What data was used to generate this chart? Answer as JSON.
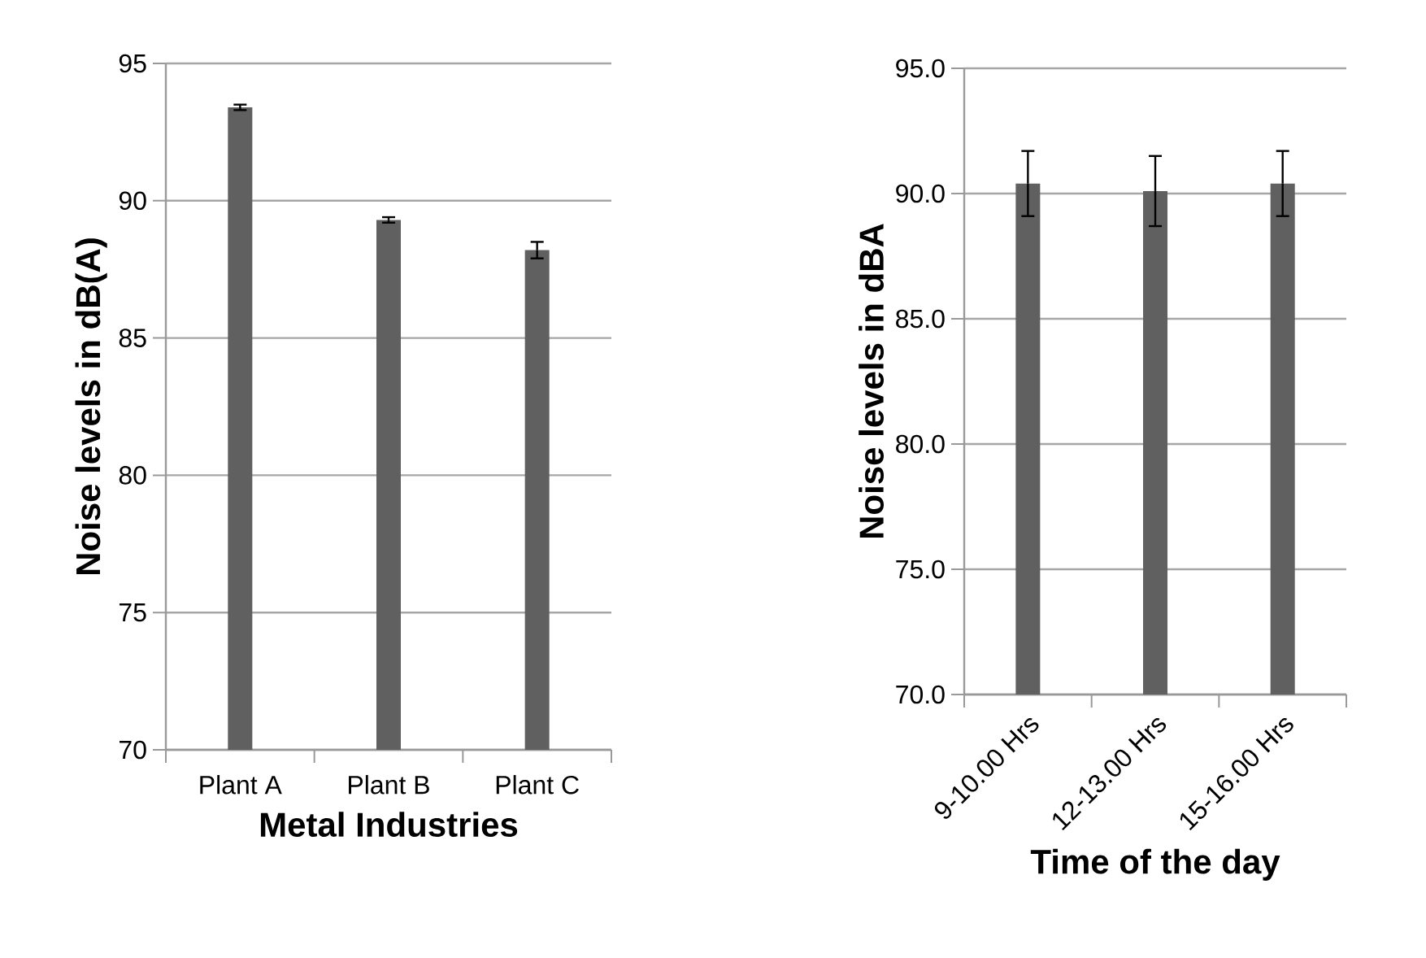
{
  "chart_data": [
    {
      "type": "bar",
      "xlabel": "Metal Industries",
      "ylabel": "Noise levels in dB(A)",
      "categories": [
        "Plant A",
        "Plant B",
        "Plant C"
      ],
      "values": [
        93.4,
        89.3,
        88.2
      ],
      "errors": [
        0.1,
        0.1,
        0.3
      ],
      "color": "#606060",
      "ylim": [
        70,
        95
      ],
      "yticks": [
        70,
        75,
        80,
        85,
        90,
        95
      ],
      "grid": "y"
    },
    {
      "type": "bar",
      "xlabel": "Time of the day",
      "ylabel": "Noise levels in dBA",
      "categories": [
        "9-10.00 Hrs",
        "12-13.00 Hrs",
        "15-16.00 Hrs"
      ],
      "values": [
        90.4,
        90.1,
        90.4
      ],
      "errors": [
        1.3,
        1.4,
        1.3
      ],
      "color": "#606060",
      "ylim": [
        70,
        95
      ],
      "yticks": [
        {
          "value": 70,
          "label": "70.0"
        },
        {
          "value": 75,
          "label": "75.0"
        },
        {
          "value": 80,
          "label": "80.0"
        },
        {
          "value": 85,
          "label": "85.0"
        },
        {
          "value": 90,
          "label": "90.0"
        },
        {
          "value": 95,
          "label": "95.0"
        }
      ],
      "grid": "y"
    }
  ]
}
